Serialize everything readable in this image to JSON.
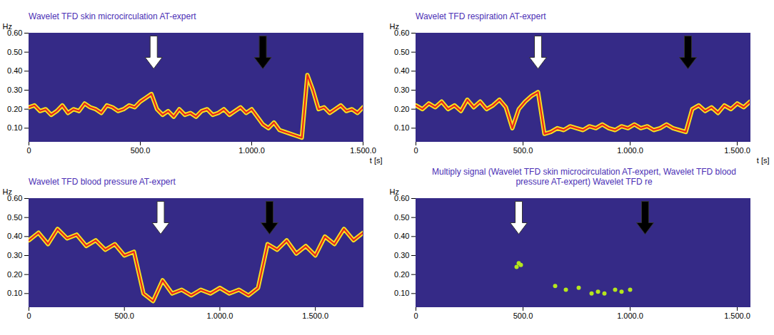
{
  "chart_data": [
    {
      "type": "line",
      "title": "Wavelet TFD skin microcirculation AT-expert",
      "xlabel": "t [s]",
      "ylabel": "Hz",
      "color": "#e8251c",
      "x": [
        0,
        25,
        50,
        75,
        100,
        125,
        150,
        175,
        200,
        225,
        250,
        275,
        300,
        325,
        350,
        375,
        400,
        425,
        450,
        475,
        500,
        525,
        550,
        575,
        600,
        625,
        650,
        675,
        700,
        725,
        750,
        775,
        800,
        825,
        850,
        875,
        900,
        925,
        950,
        975,
        1000,
        1025,
        1050,
        1075,
        1100,
        1125,
        1150,
        1175,
        1200,
        1225,
        1250,
        1275,
        1300,
        1325,
        1350,
        1375,
        1400,
        1425,
        1450,
        1475,
        1500
      ],
      "values": [
        0.21,
        0.22,
        0.19,
        0.2,
        0.17,
        0.19,
        0.22,
        0.18,
        0.2,
        0.19,
        0.23,
        0.21,
        0.2,
        0.18,
        0.22,
        0.21,
        0.19,
        0.2,
        0.22,
        0.21,
        0.24,
        0.26,
        0.28,
        0.2,
        0.17,
        0.19,
        0.16,
        0.2,
        0.17,
        0.18,
        0.16,
        0.19,
        0.2,
        0.17,
        0.18,
        0.2,
        0.17,
        0.19,
        0.21,
        0.18,
        0.2,
        0.16,
        0.12,
        0.1,
        0.13,
        0.09,
        0.08,
        0.07,
        0.06,
        0.05,
        0.38,
        0.3,
        0.2,
        0.21,
        0.18,
        0.2,
        0.22,
        0.19,
        0.2,
        0.18,
        0.21
      ],
      "xlim": [
        0,
        1500
      ],
      "ylim": [
        0.03,
        0.6
      ],
      "xticks": [
        0,
        {
          "value": 500,
          "label": "500.0"
        },
        {
          "value": 1000,
          "label": "1.000.0"
        },
        {
          "value": 1500,
          "label": "1.500.0"
        }
      ],
      "yticks": [
        {
          "value": 0.1,
          "label": "0.10"
        },
        {
          "value": 0.2,
          "label": "0.20"
        },
        {
          "value": 0.3,
          "label": "0.30"
        },
        {
          "value": 0.4,
          "label": "0.40"
        },
        {
          "value": 0.5,
          "label": "0.50"
        },
        {
          "value": 0.6,
          "label": "0.60"
        }
      ],
      "arrows": [
        {
          "x": 560,
          "color": "white"
        },
        {
          "x": 1050,
          "color": "black"
        }
      ]
    },
    {
      "type": "line",
      "title": "Wavelet TFD respiration AT-expert",
      "xlabel": "t [s]",
      "ylabel": "Hz",
      "color": "#e8251c",
      "x": [
        0,
        30,
        60,
        90,
        120,
        150,
        180,
        210,
        240,
        270,
        300,
        330,
        360,
        390,
        420,
        450,
        480,
        510,
        540,
        570,
        600,
        630,
        660,
        690,
        720,
        750,
        780,
        810,
        840,
        870,
        900,
        930,
        960,
        990,
        1020,
        1050,
        1080,
        1110,
        1140,
        1170,
        1200,
        1230,
        1260,
        1290,
        1320,
        1350,
        1380,
        1410,
        1440,
        1470,
        1500,
        1530,
        1560
      ],
      "values": [
        0.22,
        0.2,
        0.23,
        0.21,
        0.24,
        0.2,
        0.22,
        0.19,
        0.25,
        0.21,
        0.24,
        0.2,
        0.22,
        0.25,
        0.21,
        0.1,
        0.2,
        0.24,
        0.27,
        0.29,
        0.07,
        0.08,
        0.1,
        0.09,
        0.11,
        0.1,
        0.09,
        0.11,
        0.1,
        0.12,
        0.1,
        0.09,
        0.11,
        0.1,
        0.12,
        0.1,
        0.11,
        0.09,
        0.1,
        0.12,
        0.1,
        0.09,
        0.08,
        0.2,
        0.22,
        0.19,
        0.21,
        0.18,
        0.22,
        0.2,
        0.23,
        0.21,
        0.24
      ],
      "xlim": [
        0,
        1560
      ],
      "ylim": [
        0.03,
        0.6
      ],
      "xticks": [
        0,
        {
          "value": 500,
          "label": "500.0"
        },
        {
          "value": 1000,
          "label": "1.000.0"
        },
        {
          "value": 1500,
          "label": "1.500.0"
        }
      ],
      "yticks": [
        {
          "value": 0.1,
          "label": "0.10"
        },
        {
          "value": 0.2,
          "label": "0.20"
        },
        {
          "value": 0.3,
          "label": "0.30"
        },
        {
          "value": 0.4,
          "label": "0.40"
        },
        {
          "value": 0.5,
          "label": "0.50"
        },
        {
          "value": 0.6,
          "label": "0.60"
        }
      ],
      "arrows": [
        {
          "x": 570,
          "color": "white"
        },
        {
          "x": 1270,
          "color": "black"
        }
      ]
    },
    {
      "type": "line",
      "title": "Wavelet TFD blood pressure AT-expert",
      "ylabel": "Hz",
      "color": "#e8251c",
      "x": [
        0,
        50,
        100,
        150,
        200,
        250,
        300,
        350,
        400,
        450,
        500,
        550,
        600,
        650,
        700,
        750,
        800,
        850,
        900,
        950,
        1000,
        1050,
        1100,
        1150,
        1200,
        1250,
        1300,
        1350,
        1400,
        1450,
        1500,
        1550,
        1600,
        1650,
        1700,
        1750
      ],
      "values": [
        0.38,
        0.42,
        0.36,
        0.44,
        0.39,
        0.41,
        0.35,
        0.38,
        0.33,
        0.36,
        0.3,
        0.32,
        0.1,
        0.06,
        0.17,
        0.1,
        0.12,
        0.09,
        0.12,
        0.1,
        0.13,
        0.1,
        0.12,
        0.09,
        0.13,
        0.36,
        0.33,
        0.38,
        0.31,
        0.35,
        0.3,
        0.4,
        0.36,
        0.44,
        0.38,
        0.42
      ],
      "xlim": [
        0,
        1750
      ],
      "ylim": [
        0.03,
        0.6
      ],
      "xticks": [
        0,
        {
          "value": 500,
          "label": "500.0"
        },
        {
          "value": 1000,
          "label": "1.000.0"
        },
        {
          "value": 1500,
          "label": "1.500.0"
        }
      ],
      "yticks": [
        {
          "value": 0.1,
          "label": "0.10"
        },
        {
          "value": 0.2,
          "label": "0.20"
        },
        {
          "value": 0.3,
          "label": "0.30"
        },
        {
          "value": 0.4,
          "label": "0.40"
        },
        {
          "value": 0.5,
          "label": "0.50"
        },
        {
          "value": 0.6,
          "label": "0.60"
        }
      ],
      "arrows": [
        {
          "x": 690,
          "color": "white"
        },
        {
          "x": 1260,
          "color": "black"
        }
      ]
    },
    {
      "type": "scatter",
      "title": "Multiply signal (Wavelet TFD skin microcirculation AT-expert, Wavelet TFD blood pressure AT-expert) Wavelet TFD re",
      "ylabel": "Hz",
      "color": "#b5e61d",
      "marker": "circle",
      "x": [
        470,
        480,
        490,
        650,
        700,
        760,
        820,
        850,
        880,
        930,
        960,
        1000
      ],
      "values": [
        0.24,
        0.26,
        0.25,
        0.14,
        0.12,
        0.13,
        0.1,
        0.11,
        0.1,
        0.12,
        0.11,
        0.12
      ],
      "xlim": [
        0,
        1560
      ],
      "ylim": [
        0.03,
        0.6
      ],
      "xticks": [
        0,
        {
          "value": 500,
          "label": "500.0"
        },
        {
          "value": 1000,
          "label": "1.000.0"
        },
        {
          "value": 1500,
          "label": "1.500.0"
        }
      ],
      "yticks": [
        {
          "value": 0.1,
          "label": "0.10"
        },
        {
          "value": 0.2,
          "label": "0.20"
        },
        {
          "value": 0.3,
          "label": "0.30"
        },
        {
          "value": 0.4,
          "label": "0.40"
        },
        {
          "value": 0.5,
          "label": "0.50"
        },
        {
          "value": 0.6,
          "label": "0.60"
        }
      ],
      "arrows": [
        {
          "x": 480,
          "color": "white"
        },
        {
          "x": 1070,
          "color": "black"
        }
      ]
    }
  ]
}
